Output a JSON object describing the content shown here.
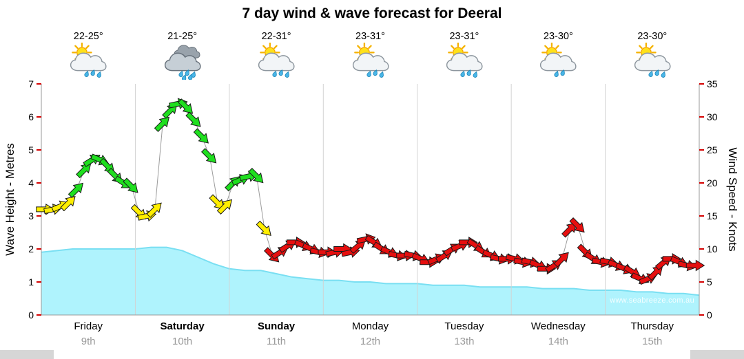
{
  "title": "7 day wind & wave forecast for Deeral",
  "watermark": "www.seabreeze.com.au",
  "colors": {
    "wave_fill": "#aff3fd",
    "wave_edge": "#79dff2",
    "wind_yellow": "#ffee00",
    "wind_green": "#1fdf1f",
    "wind_red": "#e60f0f",
    "grid": "#d2d2d2",
    "axis": "#9a9a9a",
    "tick": "#d40000",
    "date_grey": "#9a9a9a"
  },
  "days": [
    {
      "name": "Friday",
      "date": "9th",
      "temp": "22-25°",
      "bold": false,
      "icon_name": "sun-cloud-rain",
      "icon": {
        "sun": true,
        "dark": false,
        "double": false,
        "drops": 3
      }
    },
    {
      "name": "Saturday",
      "date": "10th",
      "temp": "21-25°",
      "bold": true,
      "icon_name": "clouds-heavy-rain",
      "icon": {
        "sun": false,
        "dark": true,
        "double": true,
        "drops": 5
      }
    },
    {
      "name": "Sunday",
      "date": "11th",
      "temp": "22-31°",
      "bold": true,
      "icon_name": "sun-cloud-rain",
      "icon": {
        "sun": true,
        "dark": false,
        "double": false,
        "drops": 3
      }
    },
    {
      "name": "Monday",
      "date": "12th",
      "temp": "23-31°",
      "bold": false,
      "icon_name": "sun-cloud-rain",
      "icon": {
        "sun": true,
        "dark": false,
        "double": false,
        "drops": 3
      }
    },
    {
      "name": "Tuesday",
      "date": "13th",
      "temp": "23-31°",
      "bold": false,
      "icon_name": "sun-cloud-rain",
      "icon": {
        "sun": true,
        "dark": false,
        "double": false,
        "drops": 3
      }
    },
    {
      "name": "Wednesday",
      "date": "14th",
      "temp": "23-30°",
      "bold": false,
      "icon_name": "sun-cloud-drizzle",
      "icon": {
        "sun": true,
        "dark": false,
        "double": false,
        "drops": 2
      }
    },
    {
      "name": "Thursday",
      "date": "15th",
      "temp": "23-30°",
      "bold": false,
      "icon_name": "sun-cloud-rain",
      "icon": {
        "sun": true,
        "dark": false,
        "double": false,
        "drops": 3
      }
    }
  ],
  "chart_data": {
    "type": "line",
    "title": "7 day wind & wave forecast for Deeral",
    "x_range_days": [
      0,
      7
    ],
    "grid": "vertical lines at day boundaries only",
    "legend_position": "none",
    "y_left": {
      "label": "Wave Height - Metres",
      "range": [
        0,
        7
      ],
      "ticks": [
        0,
        1,
        2,
        3,
        4,
        5,
        6,
        7
      ]
    },
    "y_right": {
      "label": "Wind Speed - Knots",
      "range": [
        0,
        35
      ],
      "ticks": [
        0,
        5,
        10,
        15,
        20,
        25,
        30,
        35
      ]
    },
    "series": [
      {
        "name": "Wave Height (metres)",
        "type": "area",
        "axis": "left",
        "points_per_day": 6,
        "values": [
          1.9,
          1.95,
          2.0,
          2.0,
          2.0,
          2.0,
          2.0,
          2.05,
          2.05,
          1.95,
          1.75,
          1.55,
          1.4,
          1.35,
          1.35,
          1.25,
          1.15,
          1.1,
          1.05,
          1.05,
          1.0,
          1.0,
          0.95,
          0.95,
          0.95,
          0.9,
          0.9,
          0.9,
          0.85,
          0.85,
          0.85,
          0.85,
          0.8,
          0.8,
          0.8,
          0.75,
          0.75,
          0.75,
          0.7,
          0.7,
          0.65,
          0.65,
          0.6
        ]
      },
      {
        "name": "Wind Speed (knots)",
        "type": "wind-arrows",
        "axis": "right",
        "points_per_day": 12,
        "color_key": {
          "y": "#ffee00",
          "g": "#1fdf1f",
          "r": "#e60f0f"
        },
        "values_by_day": [
          [
            16,
            16,
            16.5,
            17,
            19,
            22,
            23.5,
            23.5,
            22.5,
            21,
            20,
            19.5
          ],
          [
            15.5,
            15,
            16,
            29,
            31,
            32,
            31.5,
            29.5,
            27,
            24,
            17,
            16.5
          ],
          [
            20,
            20.5,
            21,
            21,
            13,
            9,
            9.5,
            10.5,
            11,
            10.5,
            10,
            9.5
          ],
          [
            9.5,
            9.5,
            10,
            9.5,
            10.5,
            11.5,
            11,
            10,
            9.5,
            9,
            9,
            9
          ],
          [
            8.5,
            8,
            8.5,
            9,
            10,
            10.5,
            11,
            10.5,
            9.5,
            9,
            8.5,
            8.5
          ],
          [
            8.5,
            8,
            8,
            7.5,
            7,
            7.5,
            8.5,
            13,
            13.5,
            9.5,
            8.5,
            8
          ],
          [
            8,
            7.5,
            7,
            6.5,
            5.5,
            5.5,
            6.5,
            8,
            8.5,
            8,
            7.5,
            7.5
          ]
        ],
        "colors_by_day": [
          "yyyygggggggg",
          "yyygggggggyy",
          "ggggyrrrrrrr",
          "rrrrrrrrrrrr",
          "rrrrrrrrrrrr",
          "rrrrrrrrrrrr",
          "rrrrrrrrrrrr"
        ]
      }
    ]
  }
}
